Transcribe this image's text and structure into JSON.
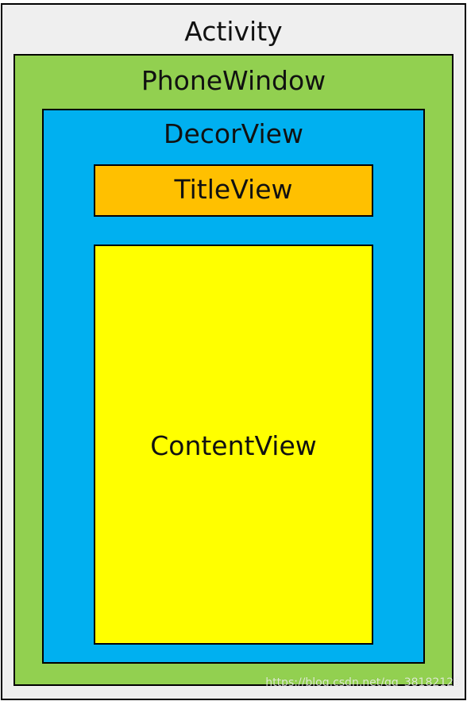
{
  "diagram": {
    "outer": {
      "label": "Activity",
      "color": "#efefef"
    },
    "window": {
      "label": "PhoneWindow",
      "color": "#92d050"
    },
    "decor": {
      "label": "DecorView",
      "color": "#00b0f0"
    },
    "title": {
      "label": "TitleView",
      "color": "#ffc000"
    },
    "content": {
      "label": "ContentView",
      "color": "#ffff00"
    }
  },
  "watermark": "https://blog.csdn.net/qq_38182125"
}
